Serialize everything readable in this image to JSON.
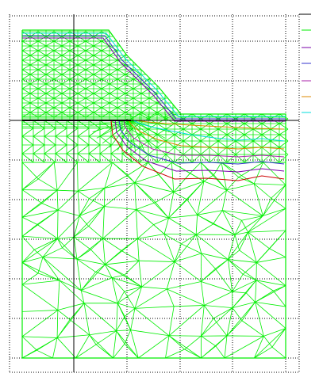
{
  "colors": {
    "background": "#ffffff",
    "grid": "#000000",
    "axis": "#000000",
    "mesh": "#00ee00",
    "contour_red": "#cc0000",
    "contour_purple": "#7a00aa",
    "contour_blue": "#3333cc",
    "contour_magenta": "#aa22aa",
    "contour_orange": "#dd8800",
    "contour_cyan": "#00dddd"
  },
  "legend": {
    "entries": [
      {
        "name": "",
        "color": "#00ee00"
      },
      {
        "name": "",
        "color": "#7a00aa"
      },
      {
        "name": "",
        "color": "#3333cc"
      },
      {
        "name": "",
        "color": "#aa22aa"
      },
      {
        "name": "",
        "color": "#dd8800"
      },
      {
        "name": "",
        "color": "#00dddd"
      }
    ]
  },
  "plot": {
    "grid": "dotted",
    "axes": "crosshair"
  }
}
